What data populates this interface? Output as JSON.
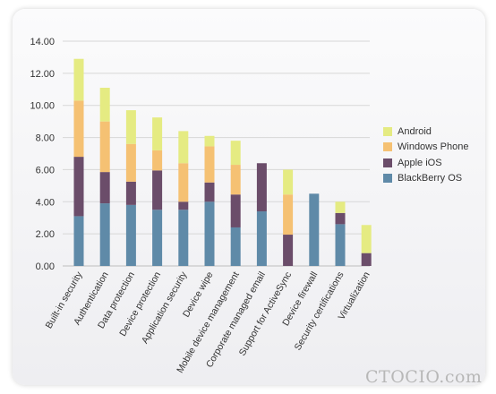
{
  "chart_data": {
    "type": "bar",
    "stacked": true,
    "categories": [
      "Built-in security",
      "Authentication",
      "Data protection",
      "Device protection",
      "Application security",
      "Device wipe",
      "Mobile device management",
      "Corporate managed email",
      "Support for ActiveSync",
      "Device firewall",
      "Security certifications",
      "Virtualization"
    ],
    "series": [
      {
        "name": "BlackBerry OS",
        "color": "#5f8aa8",
        "values": [
          3.1,
          3.9,
          3.8,
          3.5,
          3.5,
          4.0,
          2.4,
          3.4,
          0.0,
          4.5,
          2.6,
          0.0
        ]
      },
      {
        "name": "Apple iOS",
        "color": "#6b4d6a",
        "values": [
          3.7,
          1.95,
          1.45,
          2.45,
          0.5,
          1.2,
          2.05,
          3.0,
          1.95,
          0.0,
          0.7,
          0.8
        ]
      },
      {
        "name": "Windows Phone",
        "color": "#f5c173",
        "values": [
          3.5,
          3.15,
          2.35,
          1.25,
          2.4,
          2.25,
          1.85,
          0.0,
          2.5,
          0.0,
          0.0,
          0.0
        ]
      },
      {
        "name": "Android",
        "color": "#e5eb82",
        "values": [
          2.6,
          2.1,
          2.1,
          2.05,
          2.0,
          0.65,
          1.5,
          0.0,
          1.55,
          0.0,
          0.7,
          1.75
        ]
      }
    ],
    "legend_order": [
      "Android",
      "Windows Phone",
      "Apple iOS",
      "BlackBerry OS"
    ],
    "yticks": [
      "0.00",
      "2.00",
      "4.00",
      "6.00",
      "8.00",
      "10.00",
      "12.00",
      "14.00"
    ],
    "ylim": [
      0,
      14
    ],
    "grid": true,
    "legend_position": "right",
    "title": "",
    "xlabel": "",
    "ylabel": ""
  },
  "watermark": "CTOCIO.com"
}
